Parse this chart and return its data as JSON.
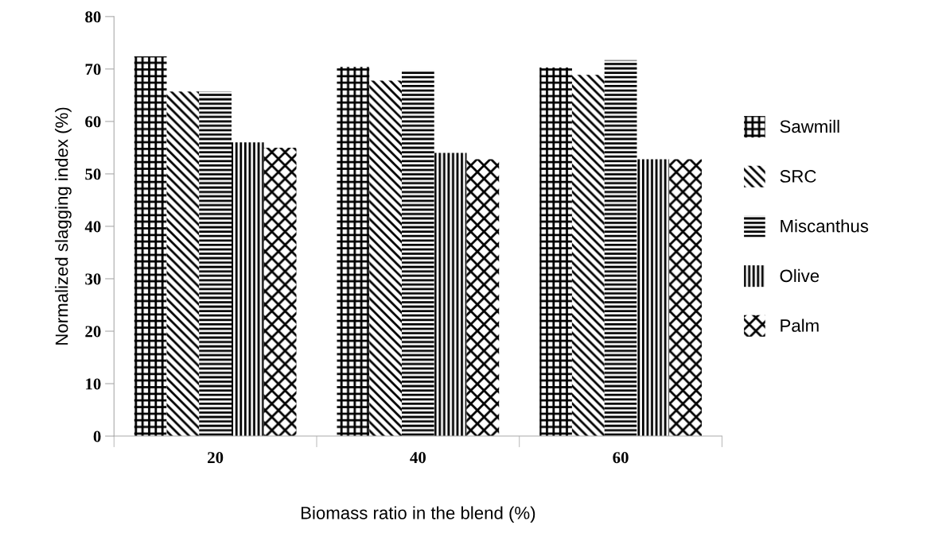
{
  "chart_data": {
    "type": "bar",
    "xlabel": "Biomass ratio in the blend (%)",
    "ylabel": "Normalized slagging index (%)",
    "categories": [
      "20",
      "40",
      "60"
    ],
    "series": [
      {
        "name": "Sawmill",
        "color": "#000000",
        "values": [
          72.4,
          70.4,
          70.3
        ]
      },
      {
        "name": "SRC",
        "color": "#000000",
        "values": [
          65.7,
          67.8,
          68.9
        ]
      },
      {
        "name": "Miscanthus",
        "color": "#000000",
        "values": [
          65.7,
          69.7,
          71.7
        ]
      },
      {
        "name": "Olive",
        "color": "#000000",
        "values": [
          56,
          54,
          52.8
        ]
      },
      {
        "name": "Palm",
        "color": "#000000",
        "values": [
          55,
          52.8,
          52.8
        ]
      }
    ],
    "ylim": [
      0,
      80
    ],
    "yticks": [
      0,
      10,
      20,
      30,
      40,
      50,
      60,
      70,
      80
    ],
    "grid": false,
    "legend": "right"
  }
}
